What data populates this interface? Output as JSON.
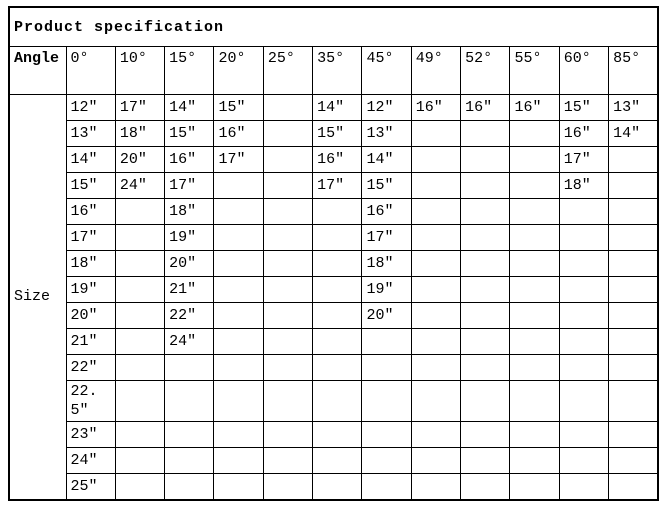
{
  "title": "Product specification",
  "table": {
    "corner_label": "Angle",
    "row_header_label": "Size",
    "columns": [
      "0°",
      "10°",
      "15°",
      "20°",
      "25°",
      "35°",
      "45°",
      "49°",
      "52°",
      "55°",
      "60°",
      "85°"
    ],
    "rows": [
      [
        "12″",
        "17″",
        "14″",
        "15″",
        "",
        "14″",
        "12″",
        "16″",
        "16″",
        "16″",
        "15″",
        "13″"
      ],
      [
        "13″",
        "18″",
        "15″",
        "16″",
        "",
        "15″",
        "13″",
        "",
        "",
        "",
        "16″",
        "14″"
      ],
      [
        "14″",
        "20″",
        "16″",
        "17″",
        "",
        "16″",
        "14″",
        "",
        "",
        "",
        "17″",
        ""
      ],
      [
        "15″",
        "24″",
        "17″",
        "",
        "",
        "17″",
        "15″",
        "",
        "",
        "",
        "18″",
        ""
      ],
      [
        "16″",
        "",
        "18″",
        "",
        "",
        "",
        "16″",
        "",
        "",
        "",
        "",
        ""
      ],
      [
        "17″",
        "",
        "19″",
        "",
        "",
        "",
        "17″",
        "",
        "",
        "",
        "",
        ""
      ],
      [
        "18″",
        "",
        "20″",
        "",
        "",
        "",
        "18″",
        "",
        "",
        "",
        "",
        ""
      ],
      [
        "19″",
        "",
        "21″",
        "",
        "",
        "",
        "19″",
        "",
        "",
        "",
        "",
        ""
      ],
      [
        "20″",
        "",
        "22″",
        "",
        "",
        "",
        "20″",
        "",
        "",
        "",
        "",
        ""
      ],
      [
        "21″",
        "",
        "24″",
        "",
        "",
        "",
        "",
        "",
        "",
        "",
        "",
        ""
      ],
      [
        "22″",
        "",
        "",
        "",
        "",
        "",
        "",
        "",
        "",
        "",
        "",
        ""
      ],
      [
        "22.5″",
        "",
        "",
        "",
        "",
        "",
        "",
        "",
        "",
        "",
        "",
        ""
      ],
      [
        "23″",
        "",
        "",
        "",
        "",
        "",
        "",
        "",
        "",
        "",
        "",
        ""
      ],
      [
        "24″",
        "",
        "",
        "",
        "",
        "",
        "",
        "",
        "",
        "",
        "",
        ""
      ],
      [
        "25″",
        "",
        "",
        "",
        "",
        "",
        "",
        "",
        "",
        "",
        "",
        ""
      ]
    ],
    "border_color": "#000000",
    "background_color": "#ffffff",
    "text_color": "#000000"
  }
}
